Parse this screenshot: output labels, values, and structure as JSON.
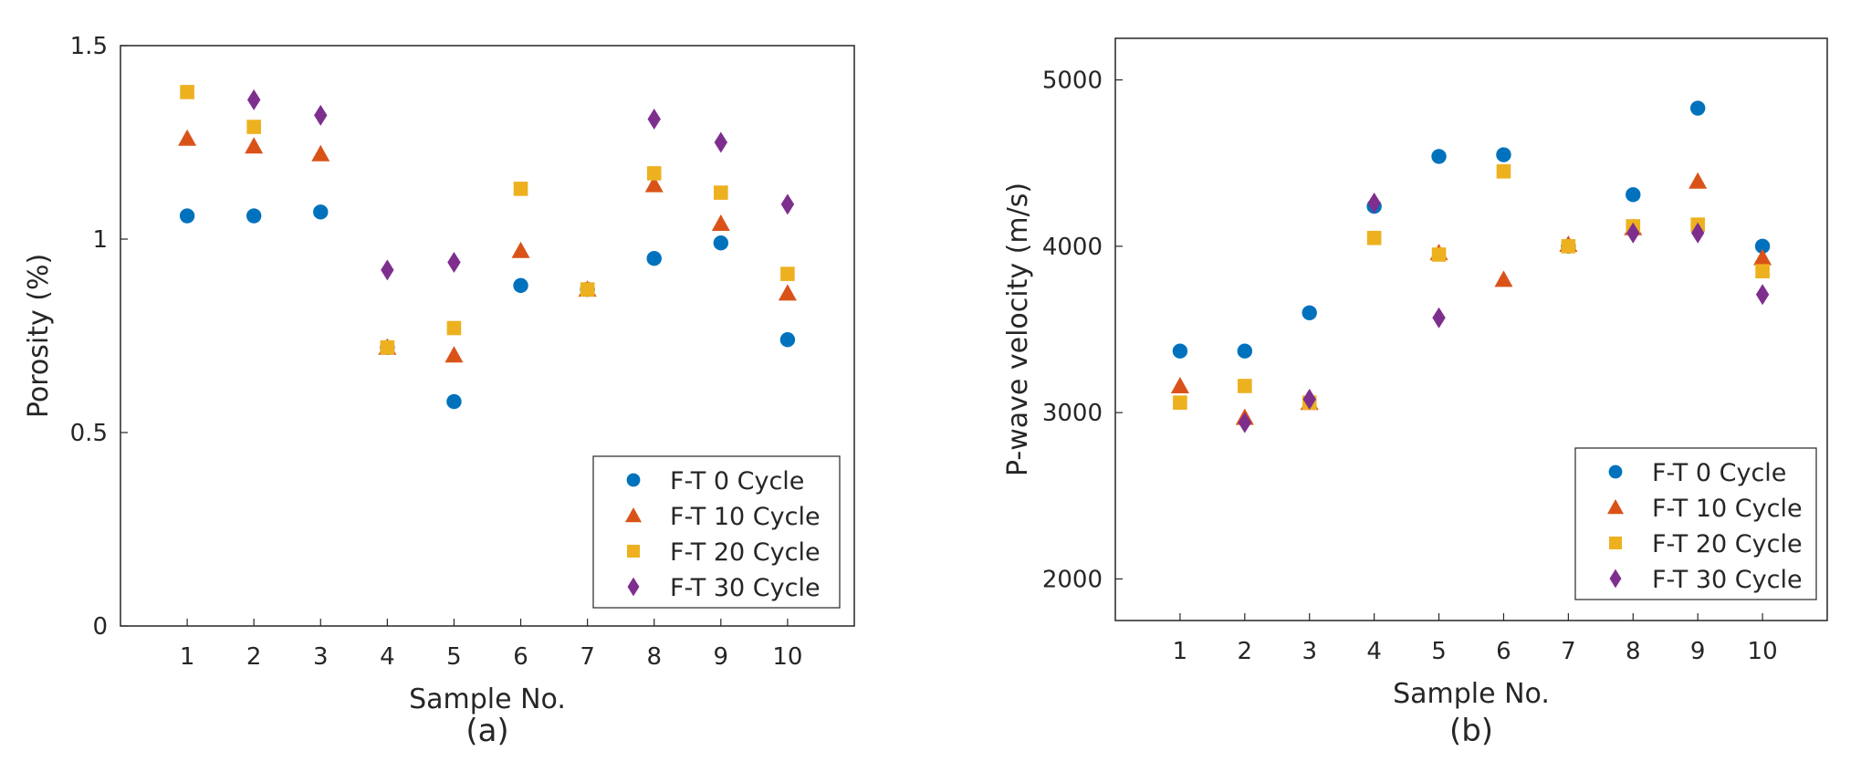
{
  "chart_data": [
    {
      "type": "scatter",
      "panel_label": "(a)",
      "xlabel": "Sample No.",
      "ylabel": "Porosity (%)",
      "xlim": [
        0,
        11
      ],
      "ylim": [
        0,
        1.5
      ],
      "xticks": [
        1,
        2,
        3,
        4,
        5,
        6,
        7,
        8,
        9,
        10
      ],
      "yticks": [
        0,
        0.5,
        1,
        1.5
      ],
      "ytick_labels": [
        "0",
        "0.5",
        "1",
        "1.5"
      ],
      "grid": false,
      "legend_position": "bottom-right",
      "x": [
        1,
        2,
        3,
        4,
        5,
        6,
        7,
        8,
        9,
        10
      ],
      "series": [
        {
          "name": "F-T 0 Cycle",
          "marker": "circle",
          "color": "#0072BD",
          "values": [
            1.06,
            1.06,
            1.07,
            0.72,
            0.58,
            0.88,
            0.87,
            0.95,
            0.99,
            0.74
          ]
        },
        {
          "name": "F-T 10 Cycle",
          "marker": "triangle",
          "color": "#D95319",
          "values": [
            1.26,
            1.24,
            1.22,
            0.72,
            0.7,
            0.97,
            0.87,
            1.14,
            1.04,
            0.86
          ]
        },
        {
          "name": "F-T 20 Cycle",
          "marker": "square",
          "color": "#EDB120",
          "values": [
            1.38,
            1.29,
            null,
            0.72,
            0.77,
            1.13,
            0.87,
            1.17,
            1.12,
            0.91
          ]
        },
        {
          "name": "F-T 30 Cycle",
          "marker": "diamond",
          "color": "#7E2F8E",
          "values": [
            null,
            1.36,
            1.32,
            0.92,
            0.94,
            null,
            null,
            1.31,
            1.25,
            1.09
          ]
        }
      ]
    },
    {
      "type": "scatter",
      "panel_label": "(b)",
      "xlabel": "Sample No.",
      "ylabel": "P-wave velocity (m/s)",
      "xlim": [
        0,
        11
      ],
      "ylim": [
        1750,
        5250
      ],
      "xticks": [
        1,
        2,
        3,
        4,
        5,
        6,
        7,
        8,
        9,
        10
      ],
      "yticks": [
        2000,
        3000,
        4000,
        5000
      ],
      "ytick_labels": [
        "2000",
        "3000",
        "4000",
        "5000"
      ],
      "grid": false,
      "legend_position": "bottom-right",
      "x": [
        1,
        2,
        3,
        4,
        5,
        6,
        7,
        8,
        9,
        10
      ],
      "series": [
        {
          "name": "F-T 0 Cycle",
          "marker": "circle",
          "color": "#0072BD",
          "values": [
            3370,
            3370,
            3600,
            4240,
            4540,
            4550,
            4000,
            4310,
            4830,
            4000
          ]
        },
        {
          "name": "F-T 10 Cycle",
          "marker": "triangle",
          "color": "#D95319",
          "values": [
            3160,
            2970,
            3060,
            null,
            3960,
            3800,
            4010,
            4110,
            4390,
            3930
          ]
        },
        {
          "name": "F-T 20 Cycle",
          "marker": "square",
          "color": "#EDB120",
          "values": [
            3060,
            3160,
            3060,
            4050,
            3950,
            4450,
            4000,
            4120,
            4130,
            3850
          ]
        },
        {
          "name": "F-T 30 Cycle",
          "marker": "diamond",
          "color": "#7E2F8E",
          "values": [
            null,
            2940,
            3080,
            4260,
            3570,
            null,
            null,
            4080,
            4080,
            3710
          ]
        }
      ]
    }
  ]
}
